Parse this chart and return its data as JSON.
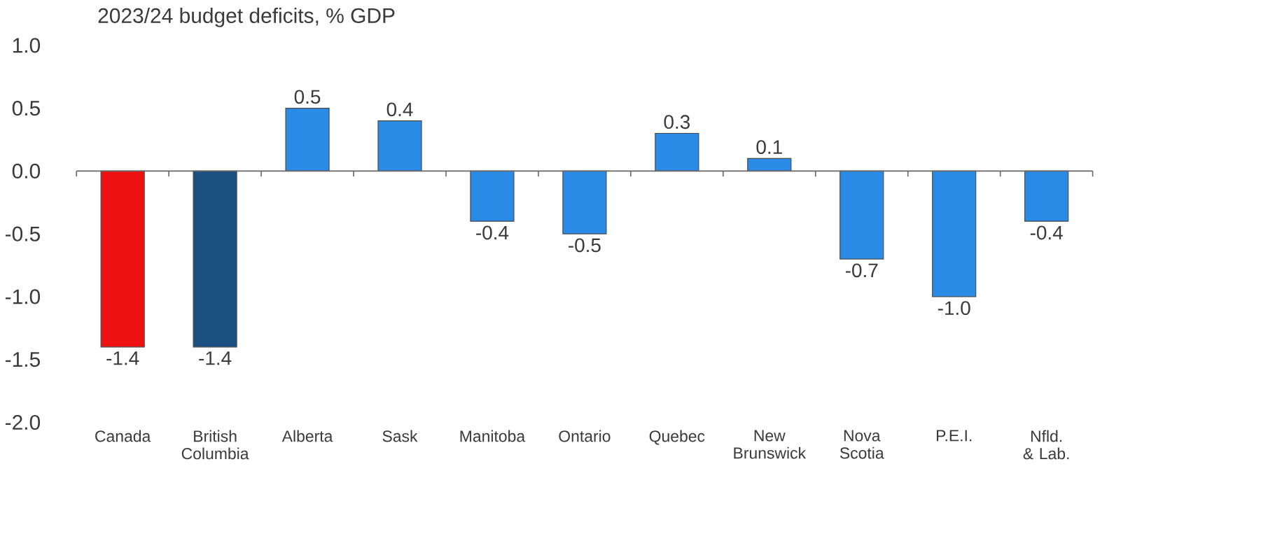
{
  "chart_data": {
    "type": "bar",
    "title": "2023/24 budget deficits, % GDP",
    "categories": [
      "Canada",
      "British Columbia",
      "Alberta",
      "Sask",
      "Manitoba",
      "Ontario",
      "Quebec",
      "New Brunswick",
      "Nova Scotia",
      "P.E.I.",
      "Nfld. & Lab."
    ],
    "values": [
      -1.4,
      -1.4,
      0.5,
      0.4,
      -0.4,
      -0.5,
      0.3,
      0.1,
      -0.7,
      -1.0,
      -0.4
    ],
    "value_labels": [
      "-1.4",
      "-1.4",
      "0.5",
      "0.4",
      "-0.4",
      "-0.5",
      "0.3",
      "0.1",
      "-0.7",
      "-1.0",
      "-0.4"
    ],
    "colors": [
      "#ee1111",
      "#1a4f82",
      "#2a8be6",
      "#2a8be6",
      "#2a8be6",
      "#2a8be6",
      "#2a8be6",
      "#2a8be6",
      "#2a8be6",
      "#2a8be6",
      "#2a8be6"
    ],
    "ylim": [
      -2,
      1
    ],
    "yticks": [
      {
        "value": -2,
        "label": "-2.0"
      },
      {
        "value": -1.5,
        "label": "-1.5"
      },
      {
        "value": -1,
        "label": "-1.0"
      },
      {
        "value": -0.5,
        "label": "-0.5"
      },
      {
        "value": 0,
        "label": "0.0"
      },
      {
        "value": 0.5,
        "label": "0.5"
      },
      {
        "value": 1,
        "label": "1.0"
      }
    ]
  }
}
